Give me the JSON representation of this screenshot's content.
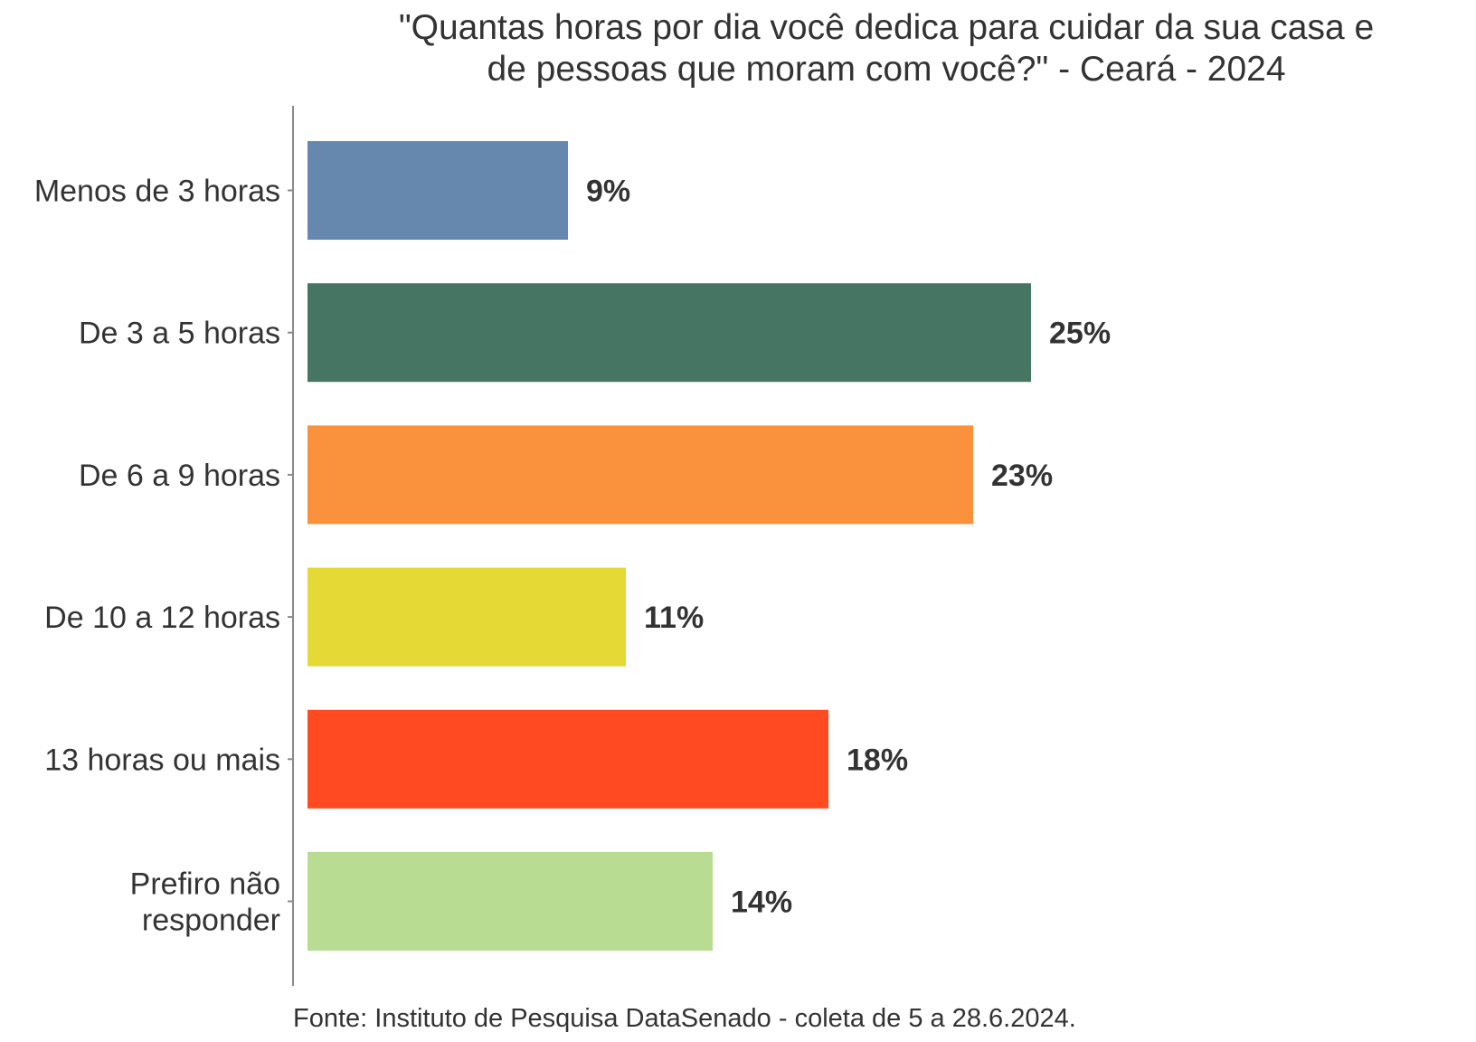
{
  "chart_data": {
    "type": "bar",
    "orientation": "horizontal",
    "title": "\"Quantas horas por dia você dedica para cuidar da sua casa e de pessoas que moram com você?\" - Ceará - 2024",
    "title_lines": [
      "\"Quantas horas por dia você dedica para cuidar da sua casa e",
      "de pessoas que moram com você?\" - Ceará - 2024"
    ],
    "categories": [
      "Menos de 3 horas",
      "De 3 a 5 horas",
      "De 6 a 9 horas",
      "De 10 a 12 horas",
      "13 horas ou mais",
      "Prefiro não responder"
    ],
    "category_lines": [
      [
        "Menos de 3 horas"
      ],
      [
        "De 3 a 5 horas"
      ],
      [
        "De 6 a 9 horas"
      ],
      [
        "De 10 a 12 horas"
      ],
      [
        "13 horas ou mais"
      ],
      [
        "Prefiro não",
        "responder"
      ]
    ],
    "values": [
      9,
      25,
      23,
      11,
      18,
      14
    ],
    "labels": [
      "9%",
      "25%",
      "23%",
      "11%",
      "18%",
      "14%"
    ],
    "colors": [
      "#6688AF",
      "#467563",
      "#FA913C",
      "#E4D935",
      "#FF4A22",
      "#B8DC91"
    ],
    "xlabel": "",
    "ylabel": "",
    "xlim": [
      0,
      25
    ],
    "grid": false,
    "legend": "none"
  },
  "footer": "Fonte: Instituto de Pesquisa DataSenado - coleta de 5 a 28.6.2024."
}
